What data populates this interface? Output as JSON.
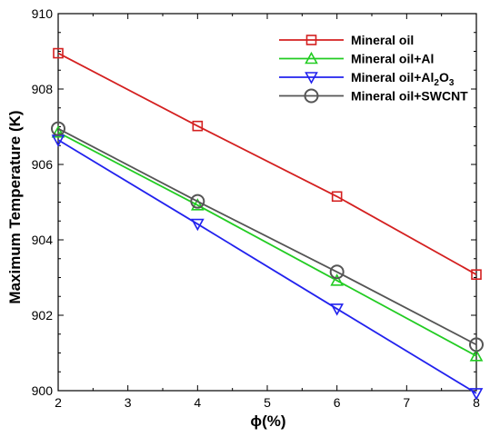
{
  "chart_data": {
    "type": "line",
    "xlabel": "ϕ(%)",
    "ylabel": "Maximum Temperature (K)",
    "xlim": [
      2,
      8
    ],
    "ylim": [
      900,
      910
    ],
    "xticks": [
      2,
      3,
      4,
      5,
      6,
      7,
      8
    ],
    "yticks": [
      900,
      902,
      904,
      906,
      908,
      910
    ],
    "x": [
      2,
      4,
      6,
      8
    ],
    "grid": false,
    "legend_position": "top-right",
    "series": [
      {
        "name": "Mineral oil",
        "name_base": "Mineral oil",
        "values": [
          908.95,
          907.02,
          905.15,
          903.08
        ],
        "color": "#d42020",
        "marker": "square"
      },
      {
        "name": "Mineral oil+Al",
        "name_base": "Mineral oil+Al",
        "values": [
          906.85,
          904.92,
          902.92,
          900.92
        ],
        "color": "#22cc22",
        "marker": "triangle-up"
      },
      {
        "name": "Mineral oil+Al2O3",
        "name_base": "Mineral oil+Al",
        "name_sub1": "2",
        "name_mid": "O",
        "name_sub2": "3",
        "values": [
          906.65,
          904.42,
          902.17,
          899.93
        ],
        "color": "#2222ee",
        "marker": "triangle-down"
      },
      {
        "name": "Mineral oil+SWCNT",
        "name_base": "Mineral oil+SWCNT",
        "values": [
          906.95,
          905.02,
          903.15,
          901.22
        ],
        "color": "#555555",
        "marker": "circle"
      }
    ]
  }
}
